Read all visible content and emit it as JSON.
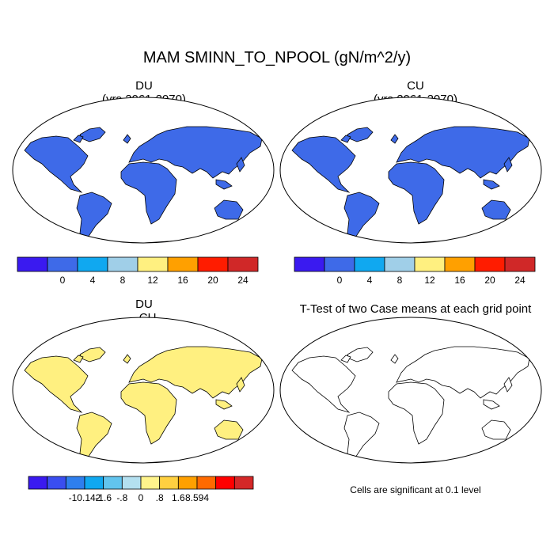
{
  "figure": {
    "title": "MAM SMINN_TO_NPOOL (gN/m^2/y)"
  },
  "panels": [
    {
      "id": "du",
      "title_line1": "DU",
      "title_line2": "(yrs 2061-2070)"
    },
    {
      "id": "cu",
      "title_line1": "CU",
      "title_line2": "(yrs 2061-2070)"
    },
    {
      "id": "diff",
      "title_line1": "DU",
      "title_line2": "- CU"
    },
    {
      "id": "ttest",
      "title_line1": "T-Test of two Case means at each grid point",
      "title_line2": ""
    }
  ],
  "note": "Cells are significant at 0.1 level",
  "chart_data": [
    {
      "type": "heatmap",
      "panel": "DU (yrs 2061-2070)",
      "colorbar": {
        "labels": [
          "0",
          "4",
          "8",
          "12",
          "16",
          "20",
          "24"
        ],
        "colors": [
          "#3a1af0",
          "#3e6ae8",
          "#10a8f0",
          "#a0cfe8",
          "#fff080",
          "#ffa000",
          "#ff1c00",
          "#d02828"
        ]
      }
    },
    {
      "type": "heatmap",
      "panel": "CU (yrs 2061-2070)",
      "colorbar": {
        "labels": [
          "0",
          "4",
          "8",
          "12",
          "16",
          "20",
          "24"
        ],
        "colors": [
          "#3a1af0",
          "#3e6ae8",
          "#10a8f0",
          "#a0cfe8",
          "#fff080",
          "#ffa000",
          "#ff1c00",
          "#d02828"
        ]
      }
    },
    {
      "type": "heatmap",
      "panel": "DU - CU",
      "colorbar": {
        "labels": [
          "-10.142",
          "-1.6",
          "-.8",
          "0",
          ".8",
          "1.6",
          "8.594"
        ],
        "colors": [
          "#3a1af0",
          "#3a4ef0",
          "#2e7fee",
          "#10a8f0",
          "#62c4ee",
          "#b4e0f0",
          "#fff48c",
          "#ffd040",
          "#ffa000",
          "#ff6a00",
          "#ff0000",
          "#d42828"
        ]
      }
    },
    {
      "type": "heatmap",
      "panel": "T-Test of two Case means at each grid point",
      "significance_color": "#e00000"
    }
  ]
}
